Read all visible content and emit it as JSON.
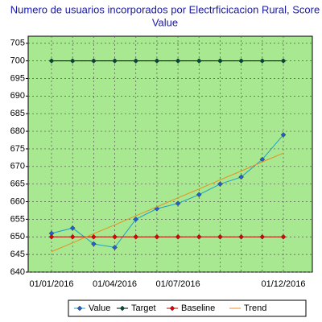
{
  "chart_data": {
    "type": "line",
    "title": [
      "Numero de usuarios incorporados por Electrficicacion Rural, Score",
      "Value"
    ],
    "categories": [
      "01/01/2016",
      null,
      null,
      "01/04/2016",
      null,
      null,
      "01/07/2016",
      null,
      null,
      null,
      null,
      "01/12/2016"
    ],
    "series": [
      {
        "name": "Value",
        "color": "#1ea0c8",
        "marker_color": "#2060d0",
        "markers": true,
        "values": [
          651,
          652.5,
          648,
          647,
          655,
          658,
          659.5,
          662,
          665,
          667,
          672,
          679
        ]
      },
      {
        "name": "Target",
        "color": "#000000",
        "marker_color": "#004a3a",
        "markers": true,
        "values": [
          700,
          700,
          700,
          700,
          700,
          700,
          700,
          700,
          700,
          700,
          700,
          700
        ]
      },
      {
        "name": "Baseline",
        "color": "#c00000",
        "marker_color": "#e00000",
        "markers": true,
        "values": [
          650,
          650,
          650,
          650,
          650,
          650,
          650,
          650,
          650,
          650,
          650,
          650
        ]
      },
      {
        "name": "Trend",
        "color": "#e89020",
        "marker_color": "#e89020",
        "markers": false,
        "values": [
          645.8,
          648.3,
          650.9,
          653.4,
          656.0,
          658.5,
          661.1,
          663.6,
          666.2,
          668.7,
          671.3,
          673.8
        ]
      }
    ],
    "ylim": [
      640,
      707
    ],
    "yticks": [
      640,
      645,
      650,
      655,
      660,
      665,
      670,
      675,
      680,
      685,
      690,
      695,
      700,
      705
    ],
    "grid": true,
    "legend": "bottom",
    "plot_color": "#a8e890"
  }
}
